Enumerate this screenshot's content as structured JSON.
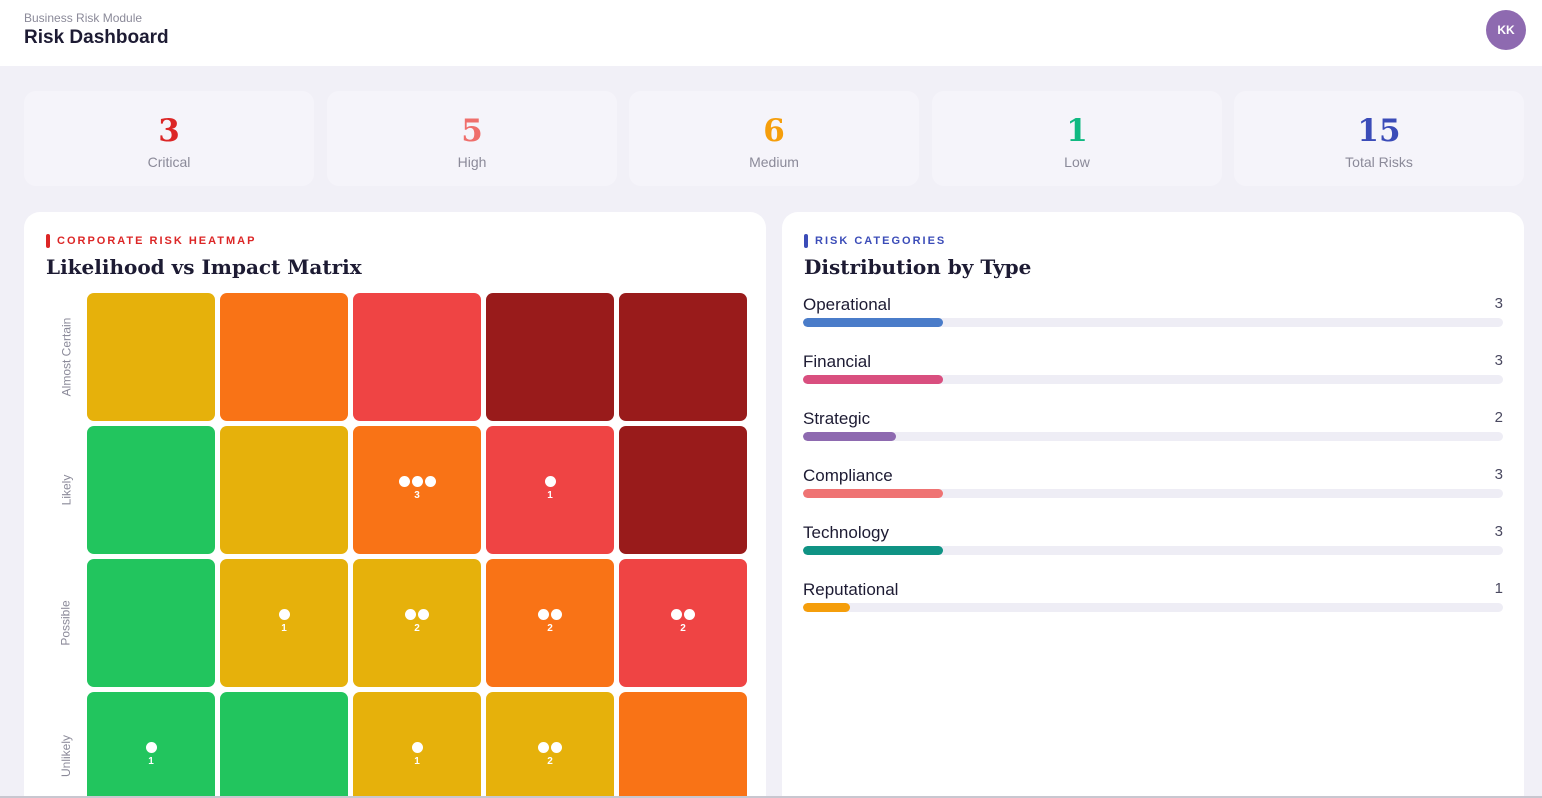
{
  "header": {
    "module": "Business Risk Module",
    "title": "Risk Dashboard",
    "avatar_initials": "KK",
    "avatar_color": "#8e6ab0"
  },
  "stats": [
    {
      "value": "3",
      "label": "Critical",
      "color": "#dc2626"
    },
    {
      "value": "5",
      "label": "High",
      "color": "#ef6f6c"
    },
    {
      "value": "6",
      "label": "Medium",
      "color": "#f59e0b"
    },
    {
      "value": "1",
      "label": "Low",
      "color": "#10b981"
    },
    {
      "value": "15",
      "label": "Total Risks",
      "color": "#3b4cb8"
    }
  ],
  "heatmap": {
    "kicker": "CORPORATE RISK HEATMAP",
    "kicker_color": "#dc2626",
    "heading": "Likelihood vs Impact Matrix",
    "likelihood_labels": [
      "Almost Certain",
      "Likely",
      "Possible",
      "Unlikely"
    ],
    "colors": {
      "green": "#22c55e",
      "yellow": "#e6b10b",
      "orange": "#f97316",
      "red": "#ef4444",
      "darkred": "#991b1b"
    },
    "rows": [
      [
        {
          "color": "yellow",
          "count": 0
        },
        {
          "color": "orange",
          "count": 0
        },
        {
          "color": "red",
          "count": 0
        },
        {
          "color": "darkred",
          "count": 0
        },
        {
          "color": "darkred",
          "count": 0
        }
      ],
      [
        {
          "color": "green",
          "count": 0
        },
        {
          "color": "yellow",
          "count": 0
        },
        {
          "color": "orange",
          "count": 3
        },
        {
          "color": "red",
          "count": 1
        },
        {
          "color": "darkred",
          "count": 0
        }
      ],
      [
        {
          "color": "green",
          "count": 0
        },
        {
          "color": "yellow",
          "count": 1
        },
        {
          "color": "yellow",
          "count": 2
        },
        {
          "color": "orange",
          "count": 2
        },
        {
          "color": "red",
          "count": 2
        }
      ],
      [
        {
          "color": "green",
          "count": 1
        },
        {
          "color": "green",
          "count": 0
        },
        {
          "color": "yellow",
          "count": 1
        },
        {
          "color": "yellow",
          "count": 2
        },
        {
          "color": "orange",
          "count": 0
        }
      ]
    ]
  },
  "categories": {
    "kicker": "RISK CATEGORIES",
    "kicker_color": "#3b4cb8",
    "heading": "Distribution by Type",
    "max": 15,
    "items": [
      {
        "name": "Operational",
        "value": 3,
        "color": "#4a7cc9"
      },
      {
        "name": "Financial",
        "value": 3,
        "color": "#d94f7f"
      },
      {
        "name": "Strategic",
        "value": 2,
        "color": "#8e6ab0"
      },
      {
        "name": "Compliance",
        "value": 3,
        "color": "#ef7373"
      },
      {
        "name": "Technology",
        "value": 3,
        "color": "#0f9384"
      },
      {
        "name": "Reputational",
        "value": 1,
        "color": "#f59e0b"
      }
    ]
  }
}
